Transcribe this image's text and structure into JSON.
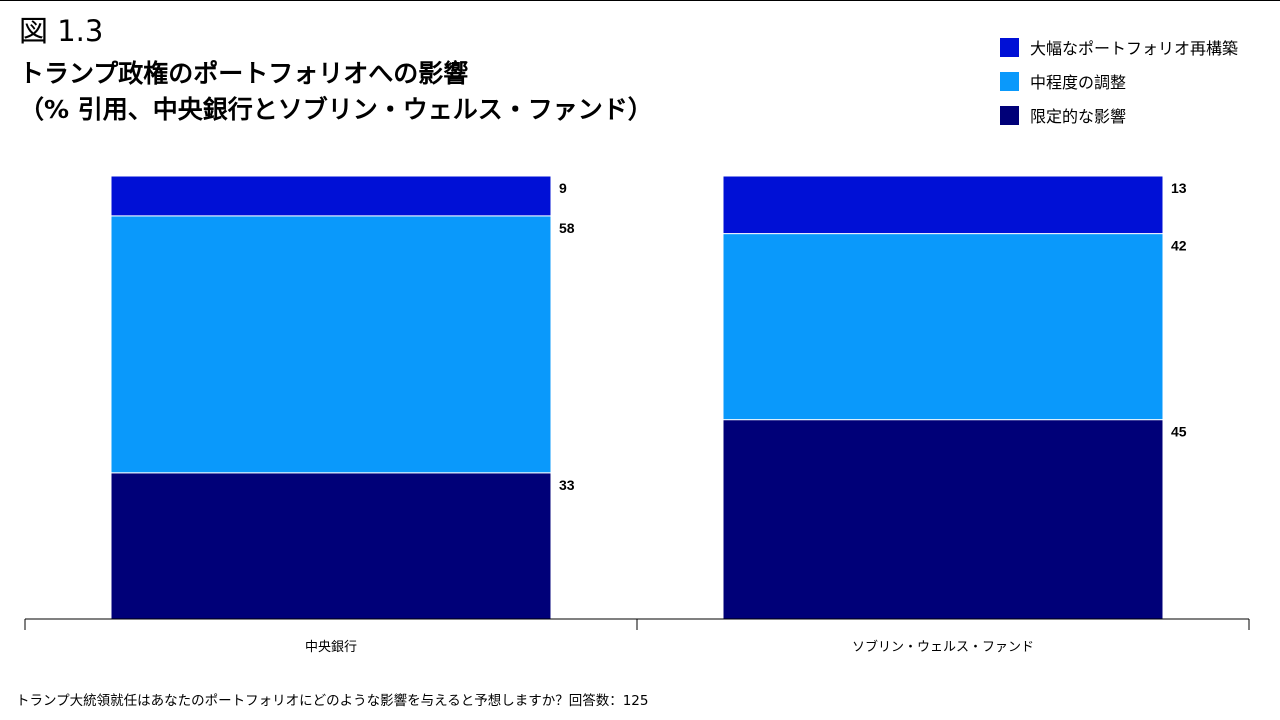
{
  "figure_label": "図 1.3",
  "title_line1": "トランプ政権のポートフォリオへの影響",
  "title_line2": "（% 引用、中央銀行とソブリン・ウェルス・ファンド）",
  "legend": [
    {
      "label": "大幅なポートフォリオ再構築",
      "color": "#0010d6"
    },
    {
      "label": "中程度の調整",
      "color": "#0a99fb"
    },
    {
      "label": "限定的な影響",
      "color": "#000078"
    }
  ],
  "chart_data": {
    "type": "bar",
    "stacked": true,
    "ylim": [
      0,
      100
    ],
    "categories": [
      "中央銀行",
      "ソブリン・ウェルス・ファンド"
    ],
    "series": [
      {
        "name": "限定的な影響",
        "values": [
          33,
          45
        ],
        "color": "#000078"
      },
      {
        "name": "中程度の調整",
        "values": [
          58,
          42
        ],
        "color": "#0a99fb"
      },
      {
        "name": "大幅なポートフォリオ再構築",
        "values": [
          9,
          13
        ],
        "color": "#0010d6"
      }
    ],
    "title": "トランプ政権のポートフォリオへの影響",
    "xlabel": "",
    "ylabel": "%",
    "legend_position": "top-right",
    "grid": false
  },
  "footnote": "トランプ大統領就任はあなたのポートフォリオにどのような影響を与えると予想しますか？回答数：125"
}
